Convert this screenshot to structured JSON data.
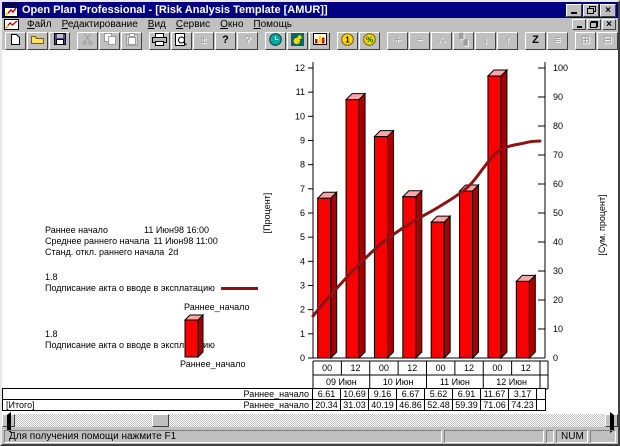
{
  "titlebar": {
    "title": "Open Plan Professional - [Risk Analysis Template [AMUR]]"
  },
  "menu": {
    "items": [
      {
        "name": "file",
        "label": "Файл",
        "hotkey_index": 0
      },
      {
        "name": "edit",
        "label": "Редактирование",
        "hotkey_index": 0
      },
      {
        "name": "view",
        "label": "Вид",
        "hotkey_index": 0
      },
      {
        "name": "tools",
        "label": "Сервис",
        "hotkey_index": 0
      },
      {
        "name": "window",
        "label": "Окно",
        "hotkey_index": 0
      },
      {
        "name": "help",
        "label": "Помощь",
        "hotkey_index": 0
      }
    ]
  },
  "toolbar": {
    "groups": [
      {
        "buttons": [
          {
            "name": "new",
            "enabled": true
          },
          {
            "name": "open",
            "enabled": true
          },
          {
            "name": "save",
            "enabled": true
          }
        ]
      },
      {
        "buttons": [
          {
            "name": "cut",
            "enabled": false
          },
          {
            "name": "copy",
            "enabled": false
          },
          {
            "name": "paste",
            "enabled": false
          }
        ]
      },
      {
        "buttons": [
          {
            "name": "print",
            "enabled": true
          },
          {
            "name": "print-preview",
            "enabled": true
          },
          {
            "name": "chart-settings",
            "enabled": false
          },
          {
            "name": "help",
            "enabled": true
          },
          {
            "name": "context-help",
            "enabled": false
          }
        ]
      },
      {
        "buttons": [
          {
            "name": "time-analysis",
            "enabled": true
          },
          {
            "name": "resource-analysis",
            "enabled": true
          },
          {
            "name": "risk-analysis",
            "enabled": true
          }
        ]
      },
      {
        "buttons": [
          {
            "name": "cost",
            "enabled": true
          },
          {
            "name": "percent-complete",
            "enabled": true
          }
        ]
      },
      {
        "buttons": [
          {
            "name": "add",
            "enabled": false
          },
          {
            "name": "remove",
            "enabled": false
          },
          {
            "name": "link",
            "enabled": false
          },
          {
            "name": "steps",
            "enabled": false
          },
          {
            "name": "move-down",
            "enabled": false
          },
          {
            "name": "move-up",
            "enabled": false
          }
        ]
      },
      {
        "buttons": [
          {
            "name": "sort",
            "enabled": true
          },
          {
            "name": "outline",
            "enabled": false
          }
        ]
      },
      {
        "buttons": [
          {
            "name": "split-window",
            "enabled": false
          },
          {
            "name": "cascade",
            "enabled": false
          }
        ]
      }
    ]
  },
  "stats": {
    "rows": [
      {
        "label": "Раннее начало",
        "value": "11 Июн98 16:00"
      },
      {
        "label": "Среднее раннего начала",
        "value": "11 Июн98 11:00"
      },
      {
        "label": "Станд. откл.  раннего начала",
        "value": "2d"
      }
    ]
  },
  "legend": {
    "line": {
      "factor": "1.8",
      "activity": "Подписание акта о вводе в эксплатацию",
      "series": "Раннее_начало"
    },
    "bar": {
      "factor": "1.8",
      "activity": "Подписание акта о вводе в эксплатацию",
      "series": "Раннее_начало"
    }
  },
  "chart_data": {
    "type": "bar",
    "title": "",
    "ylabel_left": "[Процент]",
    "ylim_left": [
      0,
      12
    ],
    "ylabel_right": "[Сум. процент]",
    "ylim_right": [
      0,
      100
    ],
    "x_hour_labels": [
      "00",
      "12",
      "00",
      "12",
      "00",
      "12",
      "00",
      "12"
    ],
    "x_date_groups": [
      "09 Июн",
      "10 Июн",
      "11 Июн",
      "12 Июн"
    ],
    "series": [
      {
        "name": "Раннее_начало",
        "type": "bar",
        "axis": "left",
        "color": "#fb0000",
        "values": [
          6.61,
          10.69,
          9.16,
          6.67,
          5.62,
          6.91,
          11.67,
          3.17
        ]
      },
      {
        "name": "Раннее_начало",
        "type": "line",
        "axis": "right",
        "color": "#8b1414",
        "values": [
          20.34,
          31.03,
          40.19,
          46.86,
          52.48,
          59.39,
          71.06,
          74.23
        ]
      }
    ],
    "legend_position": "left",
    "grid": false
  },
  "table": {
    "rows": [
      {
        "row_label": "",
        "series": "Раннее_начало",
        "values": [
          "6.61",
          "10.69",
          "9.16",
          "6.67",
          "5.62",
          "6.91",
          "11.67",
          "3.17"
        ]
      },
      {
        "row_label": "[Итого]",
        "series": "Раннее_начало",
        "values": [
          "20.34",
          "31.03",
          "40.19",
          "46.86",
          "52.48",
          "59.39",
          "71.06",
          "74.23"
        ]
      }
    ]
  },
  "statusbar": {
    "message": "Для получения помощи нажмите F1",
    "num": "NUM"
  }
}
